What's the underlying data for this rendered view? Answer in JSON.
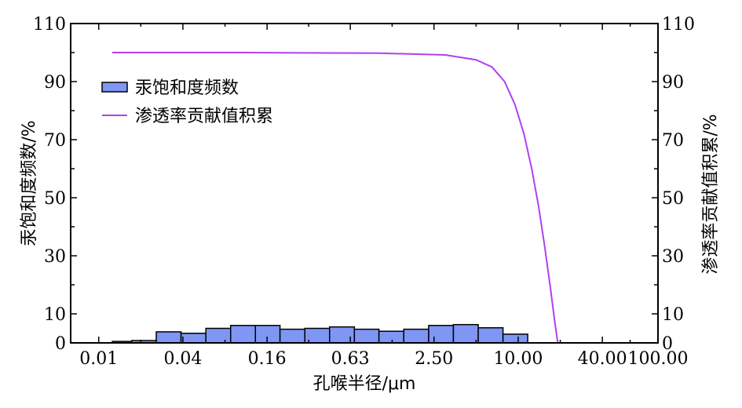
{
  "chart_data": {
    "type": "bar",
    "xlabel": "孔喉半径/μm",
    "ylabel_left": "汞饱和度频数/%",
    "ylabel_right": "渗透率贡献值积累/%",
    "x_tick_labels": [
      "0.01",
      "0.04",
      "0.16",
      "0.63",
      "2.50",
      "10.00",
      "40.00",
      "100.00"
    ],
    "x_tick_values": [
      0.01,
      0.04,
      0.16,
      0.63,
      2.5,
      10.0,
      40.0,
      100.0
    ],
    "x_scale": "log",
    "xlim": [
      0.0063,
      100
    ],
    "y_left_ticks": [
      "0",
      "10",
      "30",
      "50",
      "70",
      "90",
      "110"
    ],
    "y_right_ticks": [
      "0",
      "10",
      "30",
      "50",
      "70",
      "90",
      "110"
    ],
    "ylim": [
      0,
      110
    ],
    "legend_position": "upper-left",
    "grid": false,
    "series": [
      {
        "name": "汞饱和度频数",
        "kind": "bar",
        "color": "#7f96f5",
        "edge_color": "#000000",
        "bins": [
          {
            "x0": 0.0125,
            "x1": 0.0172,
            "value": 0.5
          },
          {
            "x0": 0.0172,
            "x1": 0.0258,
            "value": 0.8
          },
          {
            "x0": 0.0258,
            "x1": 0.0388,
            "value": 3.8
          },
          {
            "x0": 0.0388,
            "x1": 0.0584,
            "value": 3.3
          },
          {
            "x0": 0.0584,
            "x1": 0.0878,
            "value": 5.0
          },
          {
            "x0": 0.0878,
            "x1": 0.132,
            "value": 6.0
          },
          {
            "x0": 0.132,
            "x1": 0.198,
            "value": 6.0
          },
          {
            "x0": 0.198,
            "x1": 0.298,
            "value": 4.7
          },
          {
            "x0": 0.298,
            "x1": 0.448,
            "value": 5.0
          },
          {
            "x0": 0.448,
            "x1": 0.674,
            "value": 5.5
          },
          {
            "x0": 0.674,
            "x1": 1.01,
            "value": 4.7
          },
          {
            "x0": 1.01,
            "x1": 1.52,
            "value": 4.0
          },
          {
            "x0": 1.52,
            "x1": 2.29,
            "value": 4.7
          },
          {
            "x0": 2.29,
            "x1": 3.44,
            "value": 6.0
          },
          {
            "x0": 3.44,
            "x1": 5.18,
            "value": 6.3
          },
          {
            "x0": 5.18,
            "x1": 7.79,
            "value": 5.2
          },
          {
            "x0": 7.79,
            "x1": 11.7,
            "value": 3.0
          }
        ]
      },
      {
        "name": "渗透率贡献值积累",
        "kind": "line",
        "color": "#b040f0",
        "x": [
          0.0125,
          0.1,
          1.0,
          3.0,
          5.0,
          6.5,
          8.0,
          9.5,
          11.0,
          12.5,
          14.0,
          15.5,
          17.0,
          18.3,
          19.2
        ],
        "y": [
          100,
          100,
          99.8,
          99.2,
          97.5,
          95,
          90,
          82,
          72,
          60,
          47,
          33,
          19,
          7,
          0
        ]
      }
    ]
  }
}
